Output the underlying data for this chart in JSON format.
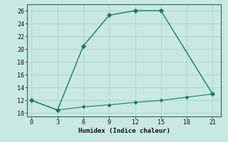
{
  "xlabel": "Humidex (Indice chaleur)",
  "bg_color": "#c8e8e0",
  "grid_color": "#b0d8d0",
  "line_color": "#1a7a6a",
  "line1_x": [
    0,
    3,
    6,
    9,
    12,
    15,
    21
  ],
  "line1_y": [
    12,
    10.5,
    20.5,
    25.3,
    26,
    26,
    13
  ],
  "line2_x": [
    0,
    3,
    6,
    9,
    12,
    15,
    18,
    21
  ],
  "line2_y": [
    12,
    10.5,
    11.0,
    11.3,
    11.7,
    12.0,
    12.5,
    13.0
  ],
  "xlim": [
    -0.5,
    22
  ],
  "ylim": [
    9.5,
    27
  ],
  "xticks": [
    0,
    3,
    6,
    9,
    12,
    15,
    18,
    21
  ],
  "yticks": [
    10,
    12,
    14,
    16,
    18,
    20,
    22,
    24,
    26
  ]
}
